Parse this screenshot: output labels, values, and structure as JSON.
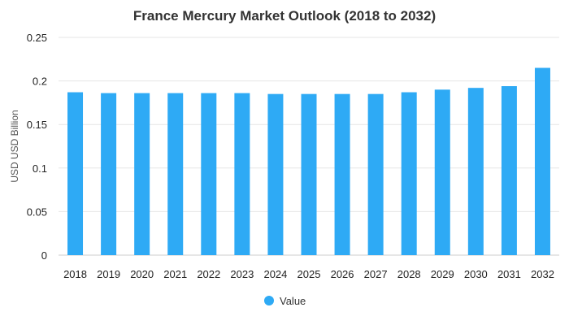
{
  "chart_data": {
    "type": "bar",
    "title": "France Mercury Market Outlook (2018 to 2032)",
    "ylabel": "USD USD Billion",
    "xlabel": "",
    "categories": [
      "2018",
      "2019",
      "2020",
      "2021",
      "2022",
      "2023",
      "2024",
      "2025",
      "2026",
      "2027",
      "2028",
      "2029",
      "2030",
      "2031",
      "2032"
    ],
    "series": [
      {
        "name": "Value",
        "values": [
          0.187,
          0.186,
          0.186,
          0.186,
          0.186,
          0.186,
          0.185,
          0.185,
          0.185,
          0.185,
          0.187,
          0.19,
          0.192,
          0.194,
          0.215
        ]
      }
    ],
    "ylim": [
      0,
      0.25
    ],
    "yticks": [
      "0",
      "0.05",
      "0.1",
      "0.15",
      "0.2",
      "0.25"
    ],
    "grid": true,
    "legend": "bottom-center",
    "colors": {
      "bar": "#2eaaf5",
      "grid": "#e6e6e6",
      "axis": "#cccccc"
    }
  }
}
